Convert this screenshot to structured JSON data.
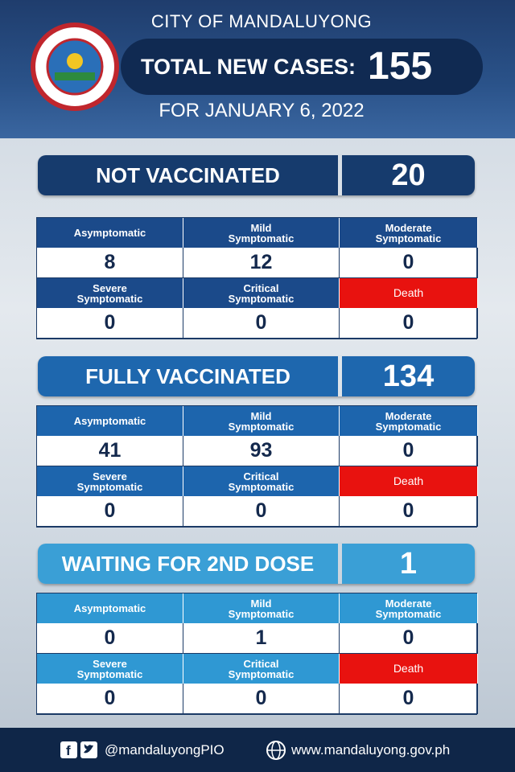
{
  "header": {
    "city": "CITY OF MANDALUYONG",
    "total_label": "TOTAL NEW CASES:",
    "total": 155,
    "date": "FOR JANUARY 6, 2022"
  },
  "sections": [
    {
      "title": "NOT VACCINATED",
      "total": 20,
      "cells": [
        {
          "label": "Asymptomatic",
          "value": 8
        },
        {
          "label": "Mild\nSymptomatic",
          "value": 12
        },
        {
          "label": "Moderate\nSymptomatic",
          "value": 0
        },
        {
          "label": "Severe\nSymptomatic",
          "value": 0
        },
        {
          "label": "Critical\nSymptomatic",
          "value": 0
        },
        {
          "label": "Death",
          "value": 0
        }
      ]
    },
    {
      "title": "FULLY VACCINATED",
      "total": 134,
      "cells": [
        {
          "label": "Asymptomatic",
          "value": 41
        },
        {
          "label": "Mild\nSymptomatic",
          "value": 93
        },
        {
          "label": "Moderate\nSymptomatic",
          "value": 0
        },
        {
          "label": "Severe\nSymptomatic",
          "value": 0
        },
        {
          "label": "Critical\nSymptomatic",
          "value": 0
        },
        {
          "label": "Death",
          "value": 0
        }
      ]
    },
    {
      "title": "WAITING FOR 2ND DOSE",
      "total": 1,
      "cells": [
        {
          "label": "Asymptomatic",
          "value": 0
        },
        {
          "label": "Mild\nSymptomatic",
          "value": 1
        },
        {
          "label": "Moderate\nSymptomatic",
          "value": 0
        },
        {
          "label": "Severe\nSymptomatic",
          "value": 0
        },
        {
          "label": "Critical\nSymptomatic",
          "value": 0
        },
        {
          "label": "Death",
          "value": 0
        }
      ]
    }
  ],
  "footer": {
    "social": "@mandaluyongPIO",
    "website": "www.mandaluyong.gov.ph"
  }
}
